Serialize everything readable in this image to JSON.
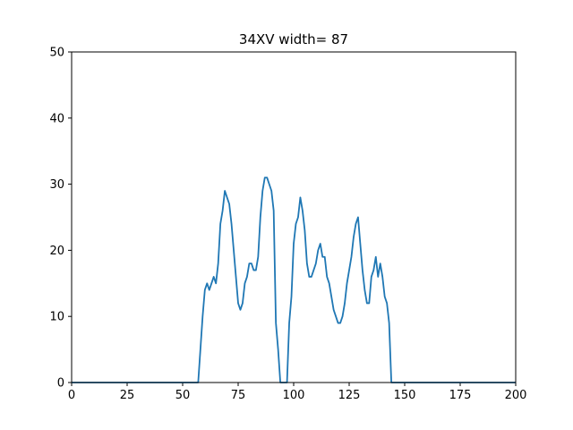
{
  "chart_data": {
    "type": "line",
    "title": "34XV width= 87",
    "xlabel": "",
    "ylabel": "",
    "xlim": [
      0,
      200
    ],
    "ylim": [
      0,
      50
    ],
    "xticks": [
      0,
      25,
      50,
      75,
      100,
      125,
      150,
      175,
      200
    ],
    "yticks": [
      0,
      10,
      20,
      30,
      40,
      50
    ],
    "grid": false,
    "series": [
      {
        "color": "#1f77b4",
        "x": [
          0,
          57,
          58,
          59,
          60,
          61,
          62,
          63,
          64,
          65,
          66,
          67,
          68,
          69,
          70,
          71,
          72,
          73,
          74,
          75,
          76,
          77,
          78,
          79,
          80,
          81,
          82,
          83,
          84,
          85,
          86,
          87,
          88,
          89,
          90,
          91,
          92,
          93,
          94,
          95,
          96,
          97,
          98,
          99,
          100,
          101,
          102,
          103,
          104,
          105,
          106,
          107,
          108,
          109,
          110,
          111,
          112,
          113,
          114,
          115,
          116,
          117,
          118,
          119,
          120,
          121,
          122,
          123,
          124,
          125,
          126,
          127,
          128,
          129,
          130,
          131,
          132,
          133,
          134,
          135,
          136,
          137,
          138,
          139,
          140,
          141,
          142,
          143,
          144,
          145,
          200
        ],
        "y": [
          0,
          0,
          5,
          10,
          14,
          15,
          14,
          15,
          16,
          15,
          18,
          24,
          26,
          29,
          28,
          27,
          24,
          20,
          16,
          12,
          11,
          12,
          15,
          16,
          18,
          18,
          17,
          17,
          19,
          25,
          29,
          31,
          31,
          30,
          29,
          26,
          9,
          5,
          0,
          0,
          0,
          0,
          9,
          13,
          21,
          24,
          25,
          28,
          26,
          23,
          18,
          16,
          16,
          17,
          18,
          20,
          21,
          19,
          19,
          16,
          15,
          13,
          11,
          10,
          9,
          9,
          10,
          12,
          15,
          17,
          19,
          22,
          24,
          25,
          21,
          17,
          14,
          12,
          12,
          16,
          17,
          19,
          16,
          18,
          16,
          13,
          12,
          9,
          0,
          0,
          0
        ]
      }
    ]
  }
}
